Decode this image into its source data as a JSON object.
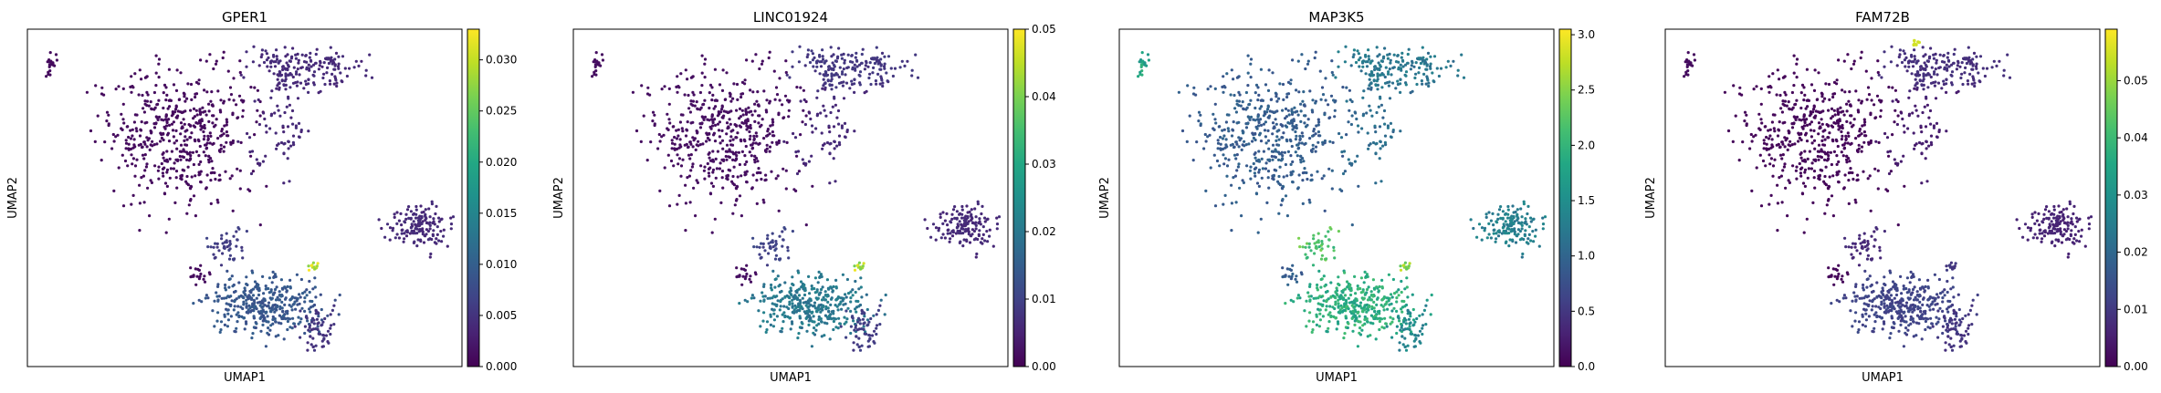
{
  "chart_data": [
    {
      "type": "scatter",
      "title": "GPER1",
      "xlabel": "UMAP1",
      "ylabel": "UMAP2",
      "colorbar": {
        "min": 0.0,
        "max": 0.033,
        "ticks": [
          "0.000",
          "0.005",
          "0.010",
          "0.015",
          "0.020",
          "0.025",
          "0.030"
        ],
        "tick_values": [
          0,
          0.005,
          0.01,
          0.015,
          0.02,
          0.025,
          0.03
        ]
      },
      "cluster_levels": {
        "island": 0.001,
        "big": 0.001,
        "top": 0.004,
        "right": 0.004,
        "bridge": 0.004,
        "lower": 0.009,
        "lower_small": 0.005,
        "hot": 0.031,
        "stem": 0.006
      }
    },
    {
      "type": "scatter",
      "title": "LINC01924",
      "xlabel": "UMAP1",
      "ylabel": "UMAP2",
      "colorbar": {
        "min": 0.0,
        "max": 0.05,
        "ticks": [
          "0.00",
          "0.01",
          "0.02",
          "0.03",
          "0.04",
          "0.05"
        ],
        "tick_values": [
          0,
          0.01,
          0.02,
          0.03,
          0.04,
          0.05
        ]
      },
      "cluster_levels": {
        "island": 0.002,
        "big": 0.002,
        "top": 0.008,
        "right": 0.006,
        "bridge": 0.006,
        "lower": 0.02,
        "lower_small": 0.009,
        "hot": 0.045,
        "stem": 0.01
      }
    },
    {
      "type": "scatter",
      "title": "MAP3K5",
      "xlabel": "UMAP1",
      "ylabel": "UMAP2",
      "colorbar": {
        "min": 0.0,
        "max": 3.05,
        "ticks": [
          "0.0",
          "0.5",
          "1.0",
          "1.5",
          "2.0",
          "2.5",
          "3.0"
        ],
        "tick_values": [
          0,
          0.5,
          1,
          1.5,
          2,
          2.5,
          3
        ]
      },
      "cluster_levels": {
        "island": 1.8,
        "big": 0.9,
        "top": 1.2,
        "right": 1.3,
        "bridge": 1.1,
        "lower": 1.9,
        "lower_small": 1.4,
        "hot": 2.6,
        "stem": 2.2
      }
    },
    {
      "type": "scatter",
      "title": "FAM72B",
      "xlabel": "UMAP1",
      "ylabel": "UMAP2",
      "colorbar": {
        "min": 0.0,
        "max": 0.059,
        "ticks": [
          "0.00",
          "0.01",
          "0.02",
          "0.03",
          "0.04",
          "0.05"
        ],
        "tick_values": [
          0,
          0.01,
          0.02,
          0.03,
          0.04,
          0.05
        ]
      },
      "cluster_levels": {
        "island": 0.002,
        "big": 0.001,
        "top": 0.008,
        "right": 0.006,
        "bridge": 0.005,
        "lower": 0.012,
        "lower_small": 0.009,
        "hot": 0.01,
        "stem": 0.007,
        "top_hot": 0.055
      }
    }
  ]
}
